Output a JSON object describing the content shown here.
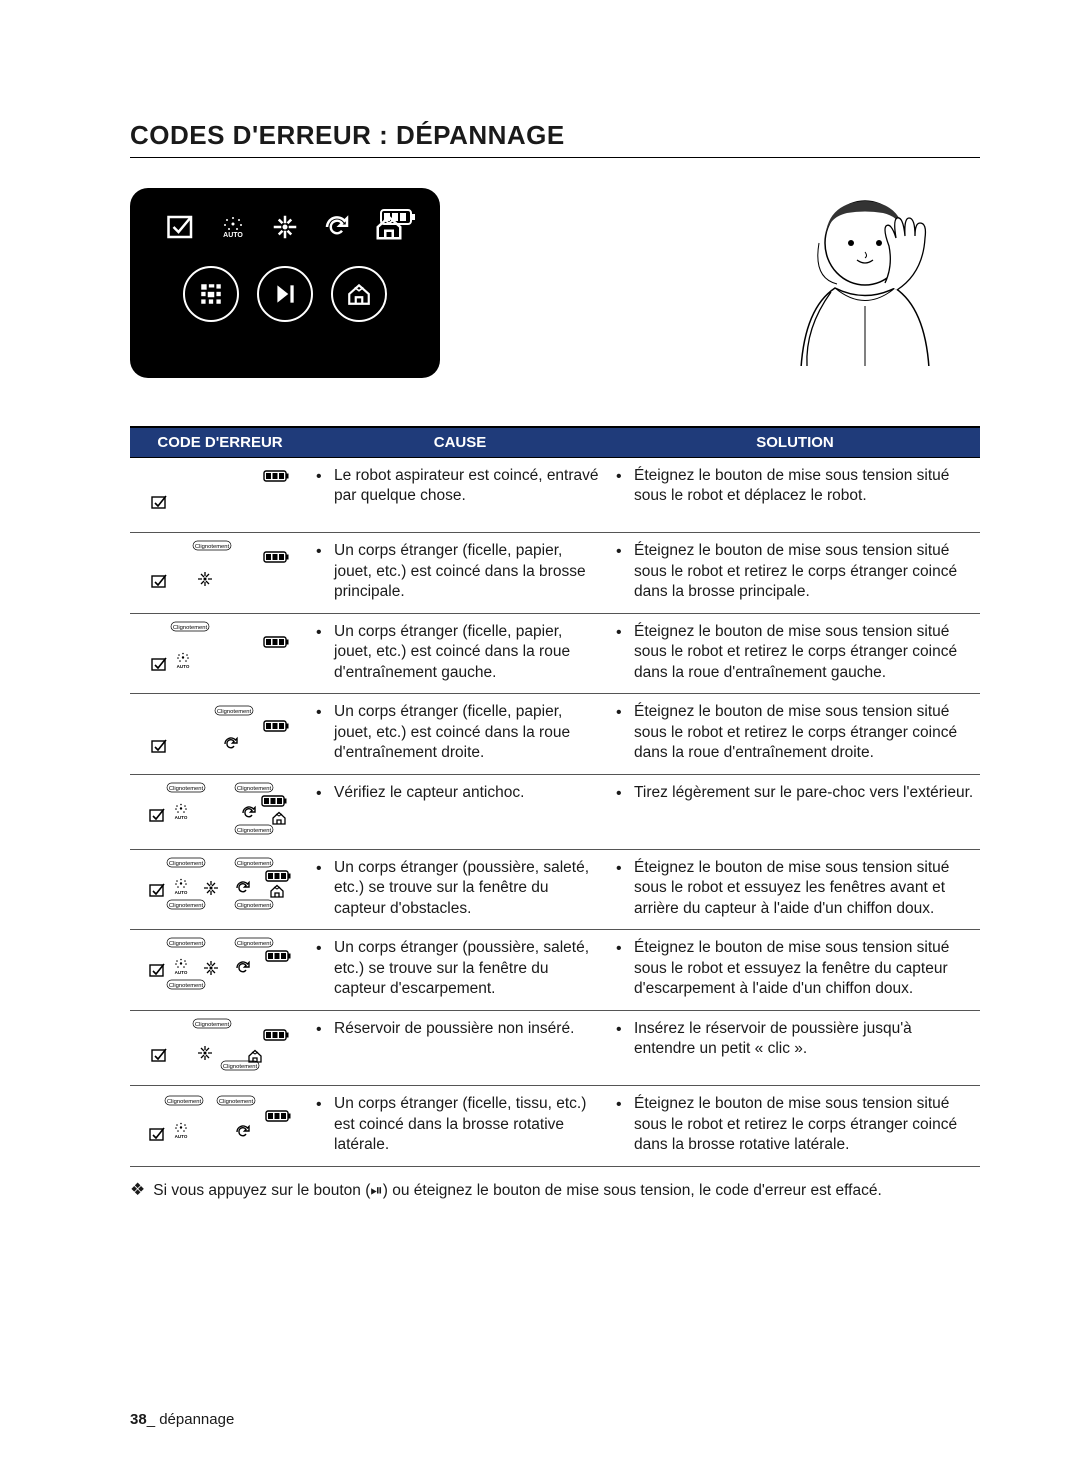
{
  "heading": "CODES D'ERREUR : DÉPANNAGE",
  "table": {
    "headers": {
      "code": "CODE D'ERREUR",
      "cause": "CAUSE",
      "solution": "SOLUTION"
    },
    "header_bg": "#1f3b7a",
    "header_text_color": "#ffffff",
    "blink_label": "Clignotement",
    "rows": [
      {
        "cause": "Le robot aspirateur est coincé, entravé par quelque chose.",
        "solution": "Éteignez le bouton de mise sous tension situé sous le robot et déplacez le robot."
      },
      {
        "cause": "Un corps étranger (ficelle, papier, jouet, etc.) est coincé dans la brosse principale.",
        "solution": "Éteignez le bouton de mise sous tension situé sous le robot et retirez le corps étranger coincé dans la brosse principale."
      },
      {
        "cause": "Un corps étranger (ficelle, papier, jouet, etc.) est coincé dans la roue d'entraînement gauche.",
        "solution": "Éteignez le bouton de mise sous tension situé sous le robot et retirez le corps étranger coincé dans la roue d'entraînement gauche."
      },
      {
        "cause": "Un corps étranger (ficelle, papier, jouet, etc.) est coincé dans la roue d'entraînement droite.",
        "solution": "Éteignez le bouton de mise sous tension situé sous le robot et retirez le corps étranger coincé dans la roue d'entraînement droite."
      },
      {
        "cause": "Vérifiez le capteur antichoc.",
        "solution": "Tirez légèrement sur le pare-choc vers l'extérieur."
      },
      {
        "cause": "Un corps étranger (poussière, saleté, etc.) se trouve sur la fenêtre du capteur d'obstacles.",
        "solution": "Éteignez le bouton de mise sous tension situé sous le robot et essuyez les fenêtres avant et arrière du capteur à l'aide d'un chiffon doux."
      },
      {
        "cause": "Un corps étranger (poussière, saleté, etc.) se trouve sur la fenêtre du capteur d'escarpement.",
        "solution": "Éteignez le bouton de mise sous tension situé sous le robot et essuyez la fenêtre du capteur d'escarpement à l'aide d'un chiffon doux."
      },
      {
        "cause": "Réservoir de poussière non inséré.",
        "solution": "Insérez le réservoir de poussière jusqu'à entendre un petit « clic »."
      },
      {
        "cause": "Un corps étranger (ficelle, tissu, etc.) est coincé dans la brosse rotative latérale.",
        "solution": "Éteignez le bouton de mise sous tension situé sous le robot et retirez le corps étranger coincé dans la brosse rotative latérale."
      }
    ]
  },
  "footnote": {
    "symbol": "❖",
    "text": "Si vous appuyez sur le bouton (⏯) ou éteignez le bouton de mise sous tension, le code d'erreur est effacé."
  },
  "page_footer": {
    "number": "38",
    "sep": "_",
    "label": "dépannage"
  },
  "auto_label": "AUTO",
  "colors": {
    "background": "#ffffff",
    "text": "#1a1a1a",
    "rule": "#000000",
    "row_border": "#555555"
  }
}
